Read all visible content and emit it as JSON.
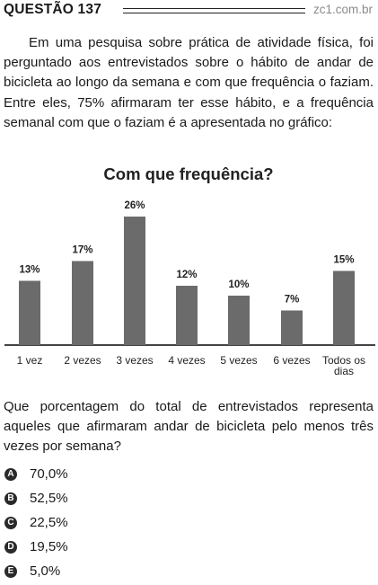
{
  "header": {
    "question_title": "QUESTÃO 137",
    "site": "zc1.com.br"
  },
  "intro": "Em uma pesquisa sobre prática de atividade física, foi perguntado aos entrevistados sobre o hábito de andar de bicicleta ao longo da semana e com que frequência o faziam. Entre eles, 75% afirmaram ter esse hábito, e a frequência semanal com que o faziam é a apresentada no gráfico:",
  "chart_data": {
    "type": "bar",
    "title": "Com que frequência?",
    "categories": [
      "1 vez",
      "2 vezes",
      "3 vezes",
      "4 vezes",
      "5 vezes",
      "6 vezes",
      "Todos os dias"
    ],
    "values": [
      13,
      17,
      26,
      12,
      10,
      7,
      15
    ],
    "value_labels": [
      "13%",
      "17%",
      "26%",
      "12%",
      "10%",
      "7%",
      "15%"
    ],
    "ylim": [
      0,
      26
    ],
    "grid": false,
    "bar_color": "#6b6b6b"
  },
  "question": "Que porcentagem do total de entrevistados representa aqueles que afirmaram andar de bicicleta pelo menos três vezes por semana?",
  "options": [
    {
      "letter": "A",
      "text": "70,0%"
    },
    {
      "letter": "B",
      "text": "52,5%"
    },
    {
      "letter": "C",
      "text": "22,5%"
    },
    {
      "letter": "D",
      "text": "19,5%"
    },
    {
      "letter": "E",
      "text": "5,0%"
    }
  ]
}
